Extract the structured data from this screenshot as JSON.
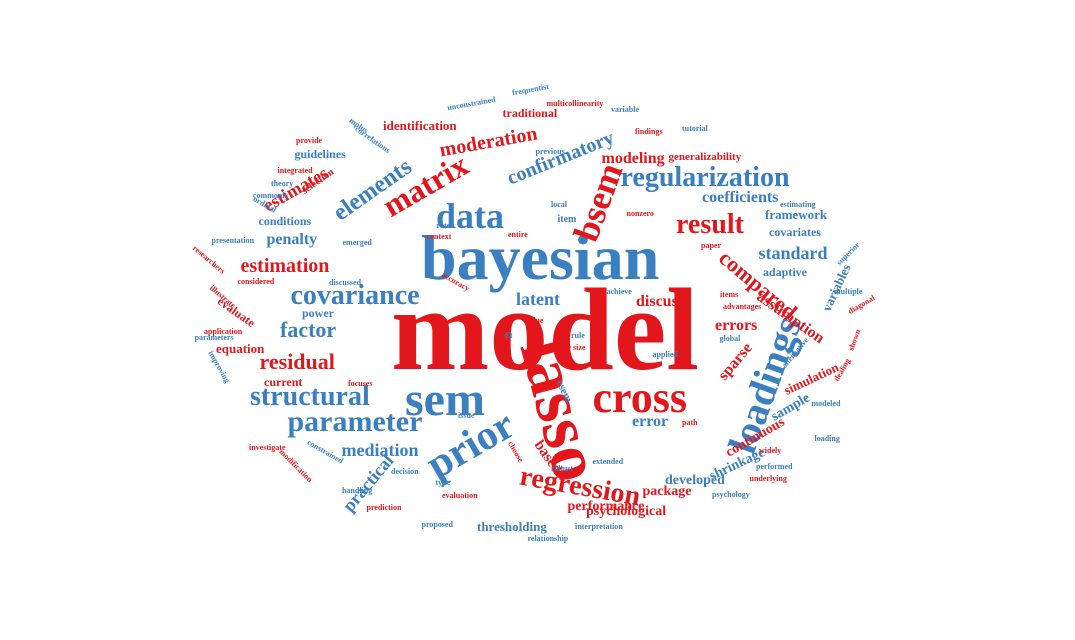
{
  "colors": {
    "red": "#e3161b",
    "blue": "#3a7fbf",
    "background": "#ffffff"
  },
  "words": [
    {
      "text": "model",
      "color": "red",
      "weight": 10
    },
    {
      "text": "bayesian",
      "color": "blue",
      "weight": 9
    },
    {
      "text": "lasso",
      "color": "red",
      "weight": 9
    },
    {
      "text": "sem",
      "color": "blue",
      "weight": 8
    },
    {
      "text": "cross",
      "color": "red",
      "weight": 7
    },
    {
      "text": "loadings",
      "color": "blue",
      "weight": 7
    },
    {
      "text": "prior",
      "color": "blue",
      "weight": 7
    },
    {
      "text": "data",
      "color": "blue",
      "weight": 7
    },
    {
      "text": "matrix",
      "color": "red",
      "weight": 6
    },
    {
      "text": "bsem",
      "color": "red",
      "weight": 6
    },
    {
      "text": "parameter",
      "color": "blue",
      "weight": 6
    },
    {
      "text": "covariance",
      "color": "blue",
      "weight": 6
    },
    {
      "text": "regularization",
      "color": "blue",
      "weight": 6
    },
    {
      "text": "regression",
      "color": "red",
      "weight": 6
    },
    {
      "text": "structural",
      "color": "blue",
      "weight": 6
    },
    {
      "text": "result",
      "color": "red",
      "weight": 5
    },
    {
      "text": "residual",
      "color": "red",
      "weight": 5
    },
    {
      "text": "factor",
      "color": "blue",
      "weight": 5
    },
    {
      "text": "elements",
      "color": "blue",
      "weight": 5
    },
    {
      "text": "estimates",
      "color": "red",
      "weight": 4
    },
    {
      "text": "estimation",
      "color": "red",
      "weight": 4
    },
    {
      "text": "compared",
      "color": "red",
      "weight": 4
    },
    {
      "text": "confirmatory",
      "color": "blue",
      "weight": 4
    },
    {
      "text": "moderation",
      "color": "red",
      "weight": 4
    },
    {
      "text": "standard",
      "color": "blue",
      "weight": 4
    },
    {
      "text": "latent",
      "color": "blue",
      "weight": 4
    },
    {
      "text": "practical",
      "color": "blue",
      "weight": 4
    },
    {
      "text": "mediation",
      "color": "blue",
      "weight": 4
    },
    {
      "text": "coefficients",
      "color": "blue",
      "weight": 3
    },
    {
      "text": "discuss",
      "color": "red",
      "weight": 3
    },
    {
      "text": "errors",
      "color": "red",
      "weight": 3
    },
    {
      "text": "error",
      "color": "blue",
      "weight": 3
    },
    {
      "text": "sparse",
      "color": "red",
      "weight": 3
    },
    {
      "text": "modeling",
      "color": "red",
      "weight": 3
    },
    {
      "text": "based",
      "color": "red",
      "weight": 3
    },
    {
      "text": "performance",
      "color": "red",
      "weight": 3
    },
    {
      "text": "penalty",
      "color": "blue",
      "weight": 3
    },
    {
      "text": "assumption",
      "color": "red",
      "weight": 3
    },
    {
      "text": "continuous",
      "color": "red",
      "weight": 3
    },
    {
      "text": "shrinkage",
      "color": "blue",
      "weight": 3
    },
    {
      "text": "developed",
      "color": "blue",
      "weight": 3
    },
    {
      "text": "package",
      "color": "red",
      "weight": 3
    },
    {
      "text": "psychological",
      "color": "red",
      "weight": 3
    },
    {
      "text": "thresholding",
      "color": "blue",
      "weight": 3
    },
    {
      "text": "sample",
      "color": "blue",
      "weight": 3
    },
    {
      "text": "simulation",
      "color": "red",
      "weight": 3
    },
    {
      "text": "variables",
      "color": "blue",
      "weight": 3
    },
    {
      "text": "framework",
      "color": "blue",
      "weight": 3
    },
    {
      "text": "covariates",
      "color": "blue",
      "weight": 3
    },
    {
      "text": "adaptive",
      "color": "blue",
      "weight": 3
    },
    {
      "text": "identification",
      "color": "red",
      "weight": 3
    },
    {
      "text": "traditional",
      "color": "red",
      "weight": 3
    },
    {
      "text": "generalizability",
      "color": "red",
      "weight": 3
    },
    {
      "text": "guidelines",
      "color": "blue",
      "weight": 3
    },
    {
      "text": "conditions",
      "color": "blue",
      "weight": 3
    },
    {
      "text": "equation",
      "color": "red",
      "weight": 3
    },
    {
      "text": "evaluate",
      "color": "red",
      "weight": 3
    },
    {
      "text": "power",
      "color": "blue",
      "weight": 3
    },
    {
      "text": "current",
      "color": "red",
      "weight": 3
    },
    {
      "text": "esem",
      "color": "blue",
      "weight": 2
    },
    {
      "text": "item",
      "color": "blue",
      "weight": 2
    },
    {
      "text": "selection",
      "color": "red",
      "weight": 2
    },
    {
      "text": "unconstrained",
      "color": "blue",
      "weight": 1
    },
    {
      "text": "frequentist",
      "color": "blue",
      "weight": 1
    },
    {
      "text": "multicollinearity",
      "color": "red",
      "weight": 1
    },
    {
      "text": "variable",
      "color": "blue",
      "weight": 1
    },
    {
      "text": "mplus",
      "color": "blue",
      "weight": 1
    },
    {
      "text": "correlations",
      "color": "blue",
      "weight": 1
    },
    {
      "text": "provide",
      "color": "red",
      "weight": 1
    },
    {
      "text": "previous",
      "color": "blue",
      "weight": 1
    },
    {
      "text": "findings",
      "color": "red",
      "weight": 1
    },
    {
      "text": "tutorial",
      "color": "blue",
      "weight": 1
    },
    {
      "text": "integrated",
      "color": "red",
      "weight": 1
    },
    {
      "text": "theory",
      "color": "blue",
      "weight": 1
    },
    {
      "text": "commonly",
      "color": "blue",
      "weight": 1
    },
    {
      "text": "ordinal",
      "color": "blue",
      "weight": 1
    },
    {
      "text": "presentation",
      "color": "blue",
      "weight": 1
    },
    {
      "text": "researchers",
      "color": "red",
      "weight": 1
    },
    {
      "text": "emerged",
      "color": "blue",
      "weight": 1
    },
    {
      "text": "rates",
      "color": "blue",
      "weight": 1
    },
    {
      "text": "context",
      "color": "red",
      "weight": 1
    },
    {
      "text": "local",
      "color": "blue",
      "weight": 1
    },
    {
      "text": "entire",
      "color": "red",
      "weight": 1
    },
    {
      "text": "nonzero",
      "color": "red",
      "weight": 1
    },
    {
      "text": "paper",
      "color": "red",
      "weight": 1
    },
    {
      "text": "estimating",
      "color": "blue",
      "weight": 1
    },
    {
      "text": "superior",
      "color": "blue",
      "weight": 1
    },
    {
      "text": "considered",
      "color": "red",
      "weight": 1
    },
    {
      "text": "discussed",
      "color": "blue",
      "weight": 1
    },
    {
      "text": "illustrate",
      "color": "red",
      "weight": 1
    },
    {
      "text": "accuracy",
      "color": "red",
      "weight": 1
    },
    {
      "text": "achieve",
      "color": "blue",
      "weight": 1
    },
    {
      "text": "items",
      "color": "red",
      "weight": 1
    },
    {
      "text": "advantages",
      "color": "red",
      "weight": 1
    },
    {
      "text": "multiple",
      "color": "blue",
      "weight": 1
    },
    {
      "text": "diagonal",
      "color": "red",
      "weight": 1
    },
    {
      "text": "application",
      "color": "red",
      "weight": 1
    },
    {
      "text": "fit",
      "color": "blue",
      "weight": 1
    },
    {
      "text": "due",
      "color": "red",
      "weight": 1
    },
    {
      "text": "rule",
      "color": "blue",
      "weight": 1
    },
    {
      "text": "size",
      "color": "red",
      "weight": 1
    },
    {
      "text": "global",
      "color": "blue",
      "weight": 1
    },
    {
      "text": "alternative",
      "color": "blue",
      "weight": 1
    },
    {
      "text": "shown",
      "color": "red",
      "weight": 1
    },
    {
      "text": "dealing",
      "color": "red",
      "weight": 1
    },
    {
      "text": "parameters",
      "color": "blue",
      "weight": 1
    },
    {
      "text": "improving",
      "color": "blue",
      "weight": 1
    },
    {
      "text": "applied",
      "color": "blue",
      "weight": 1
    },
    {
      "text": "focuses",
      "color": "red",
      "weight": 1
    },
    {
      "text": "modeled",
      "color": "blue",
      "weight": 1
    },
    {
      "text": "issue",
      "color": "blue",
      "weight": 1
    },
    {
      "text": "path",
      "color": "red",
      "weight": 1
    },
    {
      "text": "loading",
      "color": "blue",
      "weight": 1
    },
    {
      "text": "investigate",
      "color": "red",
      "weight": 1
    },
    {
      "text": "modification",
      "color": "red",
      "weight": 1
    },
    {
      "text": "constrained",
      "color": "blue",
      "weight": 1
    },
    {
      "text": "decision",
      "color": "blue",
      "weight": 1
    },
    {
      "text": "choose",
      "color": "red",
      "weight": 1
    },
    {
      "text": "extended",
      "color": "blue",
      "weight": 1
    },
    {
      "text": "robust",
      "color": "blue",
      "weight": 1
    },
    {
      "text": "widely",
      "color": "red",
      "weight": 1
    },
    {
      "text": "performed",
      "color": "blue",
      "weight": 1
    },
    {
      "text": "underlying",
      "color": "red",
      "weight": 1
    },
    {
      "text": "handling",
      "color": "blue",
      "weight": 1
    },
    {
      "text": "type",
      "color": "blue",
      "weight": 1
    },
    {
      "text": "evaluation",
      "color": "red",
      "weight": 1
    },
    {
      "text": "prediction",
      "color": "red",
      "weight": 1
    },
    {
      "text": "psychology",
      "color": "blue",
      "weight": 1
    },
    {
      "text": "proposed",
      "color": "blue",
      "weight": 1
    },
    {
      "text": "interpretation",
      "color": "blue",
      "weight": 1
    },
    {
      "text": "relationship",
      "color": "blue",
      "weight": 1
    }
  ]
}
